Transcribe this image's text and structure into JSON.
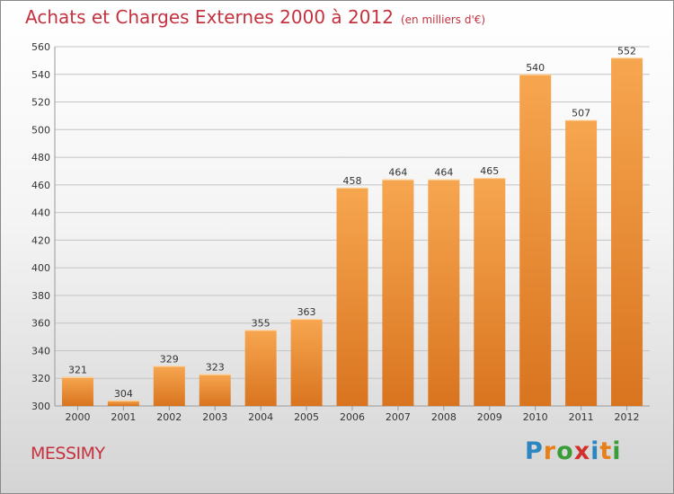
{
  "title": "Achats et Charges Externes 2000 à 2012",
  "unit": "(en milliers d'€)",
  "city": "MESSIMY",
  "logo": {
    "letters": [
      "P",
      "r",
      "o",
      "x",
      "i",
      "t",
      "i"
    ],
    "colors": [
      "#2e86c1",
      "#e6801a",
      "#3a9d3a",
      "#d0312d",
      "#2e86c1",
      "#e6801a",
      "#3a9d3a"
    ]
  },
  "colors": {
    "bar_top": "#f7a650",
    "bar_bottom": "#d9741f",
    "text": "#c4323f"
  },
  "chart_data": {
    "type": "bar",
    "categories": [
      "2000",
      "2001",
      "2002",
      "2003",
      "2004",
      "2005",
      "2006",
      "2007",
      "2008",
      "2009",
      "2010",
      "2011",
      "2012"
    ],
    "values": [
      321,
      304,
      329,
      323,
      355,
      363,
      458,
      464,
      464,
      465,
      540,
      507,
      552
    ],
    "data_labels": [
      "321",
      "304",
      "329",
      "323",
      "355",
      "363",
      "458",
      "464",
      "464",
      "465",
      "540",
      "507",
      "552"
    ],
    "ylim": [
      300,
      560
    ],
    "yticks": [
      "300",
      "320",
      "340",
      "360",
      "380",
      "400",
      "420",
      "440",
      "460",
      "480",
      "500",
      "520",
      "540",
      "560"
    ],
    "grid": true
  }
}
